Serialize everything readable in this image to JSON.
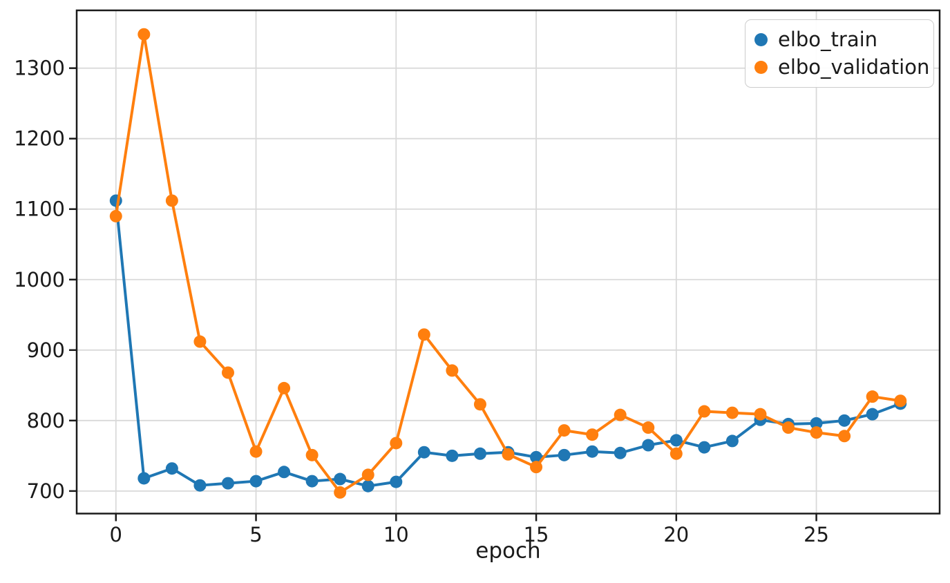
{
  "chart_data": {
    "type": "line",
    "xlabel": "epoch",
    "ylabel": "",
    "title": "",
    "x": [
      0,
      1,
      2,
      3,
      4,
      5,
      6,
      7,
      8,
      9,
      10,
      11,
      12,
      13,
      14,
      15,
      16,
      17,
      18,
      19,
      20,
      21,
      22,
      23,
      24,
      25,
      26,
      27,
      28
    ],
    "series": [
      {
        "name": "elbo_train",
        "color": "#1f77b4",
        "values": [
          1112,
          718,
          732,
          708,
          711,
          714,
          727,
          714,
          717,
          707,
          713,
          755,
          750,
          753,
          755,
          748,
          751,
          756,
          754,
          765,
          772,
          762,
          771,
          801,
          795,
          796,
          800,
          809,
          824
        ]
      },
      {
        "name": "elbo_validation",
        "color": "#ff7f0e",
        "values": [
          1090,
          1348,
          1112,
          912,
          868,
          756,
          846,
          751,
          698,
          723,
          768,
          922,
          871,
          823,
          752,
          734,
          786,
          780,
          808,
          790,
          753,
          813,
          811,
          809,
          790,
          783,
          778,
          834,
          828
        ]
      }
    ],
    "xlim": [
      -1.4,
      29.4
    ],
    "ylim": [
      668,
      1382
    ],
    "xticks": [
      0,
      5,
      10,
      15,
      20,
      25
    ],
    "yticks": [
      700,
      800,
      900,
      1000,
      1100,
      1200,
      1300
    ],
    "grid": true,
    "grid_color": "#d9d9d9",
    "spine_color": "#1a1a1a",
    "legend_position": "upper right",
    "marker": "circle"
  }
}
